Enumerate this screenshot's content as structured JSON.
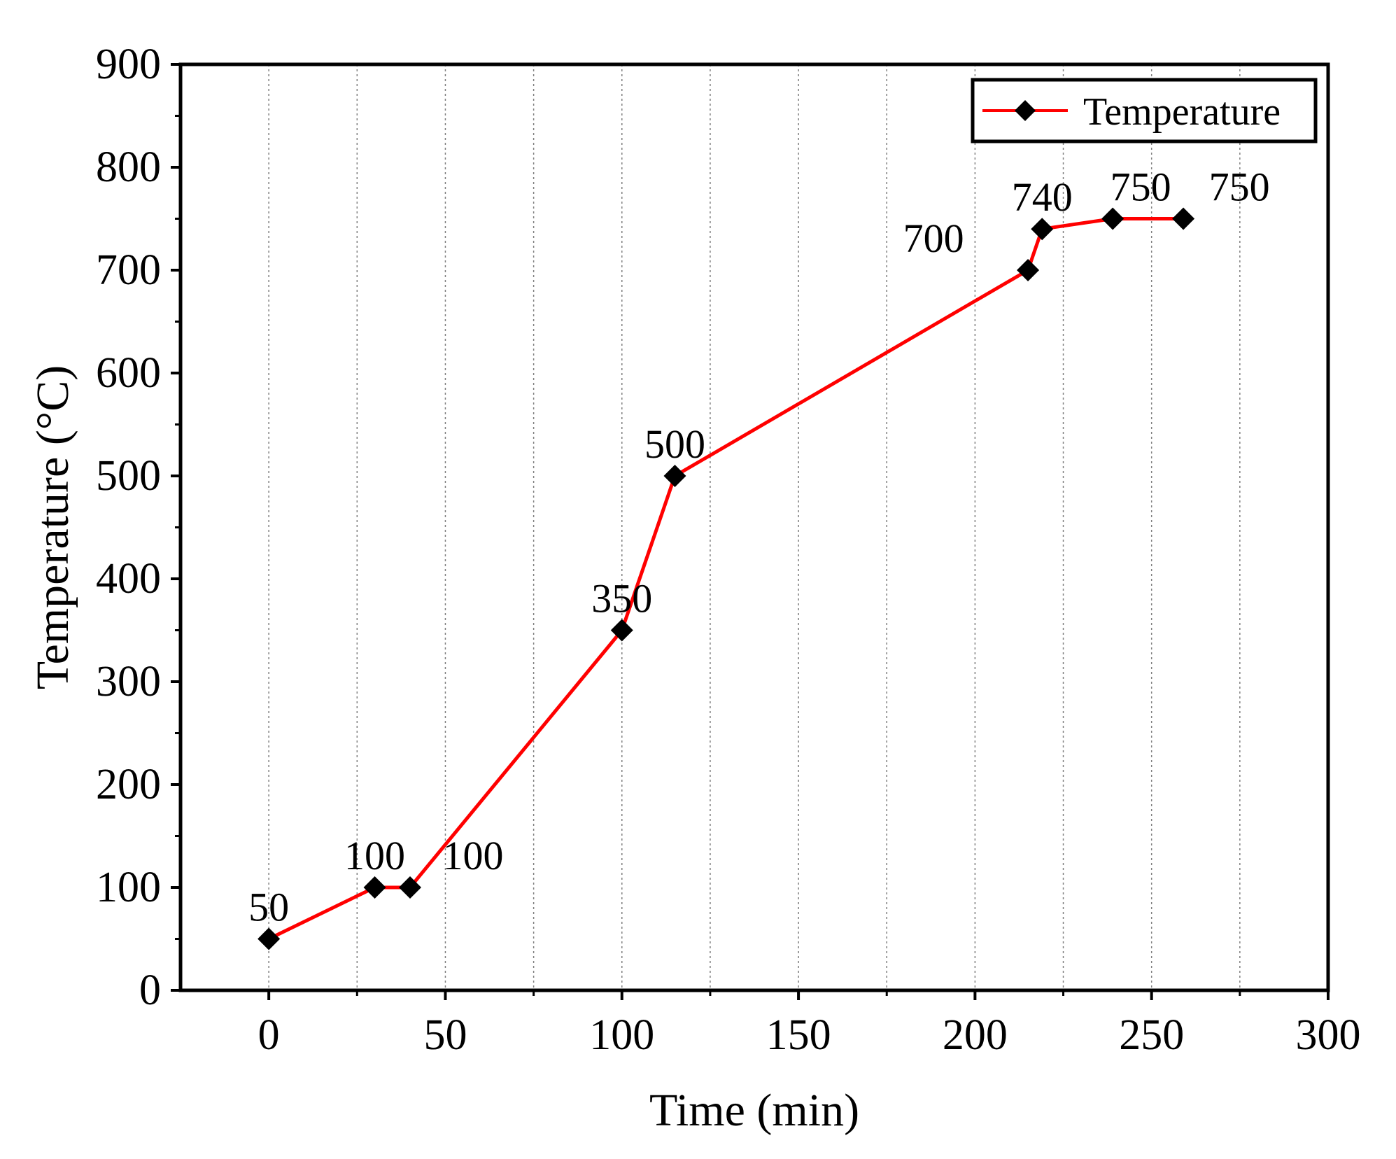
{
  "chart_data": {
    "type": "line",
    "xlabel": "Time (min)",
    "ylabel": "Temperature (°C)",
    "xlim": [
      -25,
      300
    ],
    "ylim": [
      0,
      900
    ],
    "x_ticks": [
      0,
      50,
      100,
      150,
      200,
      250,
      300
    ],
    "y_ticks": [
      0,
      100,
      200,
      300,
      400,
      500,
      600,
      700,
      800,
      900
    ],
    "x_minor_ticks": [
      25,
      75,
      125,
      175,
      225,
      275
    ],
    "y_minor_ticks": [
      50,
      150,
      250,
      350,
      450,
      550,
      650,
      750,
      850
    ],
    "vertical_grid": [
      0,
      25,
      50,
      75,
      100,
      125,
      150,
      175,
      200,
      225,
      250,
      275
    ],
    "legend": {
      "label": "Temperature",
      "position": "top-right"
    },
    "series": [
      {
        "name": "Temperature",
        "color": "#ff0000",
        "marker_color": "#000000",
        "marker": "diamond",
        "x": [
          0,
          30,
          40,
          100,
          115,
          215,
          219,
          239,
          259
        ],
        "y": [
          50,
          100,
          100,
          350,
          500,
          700,
          740,
          750,
          750
        ],
        "point_labels": [
          "50",
          "100",
          "100",
          "350",
          "500",
          "700",
          "740",
          "750",
          "750"
        ]
      }
    ]
  }
}
